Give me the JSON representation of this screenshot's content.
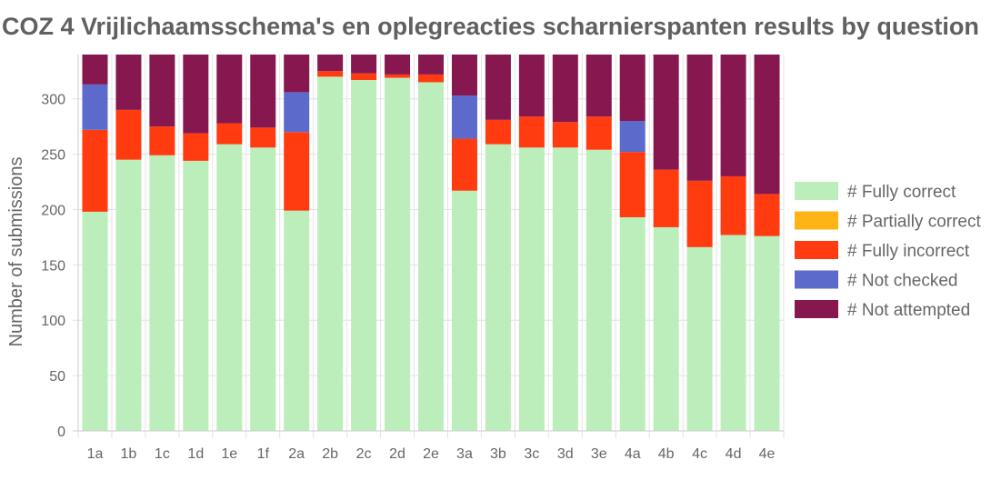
{
  "chart_data": {
    "type": "bar",
    "stacked": true,
    "title": "COZ 4 Vrijlichaamsschema's en oplegreacties scharnierspanten results by question",
    "ylabel": "Number of submissions",
    "xlabel": "",
    "ylim": [
      0,
      340
    ],
    "yticks": [
      0,
      50,
      100,
      150,
      200,
      250,
      300
    ],
    "grid": true,
    "legend_position": "right",
    "categories": [
      "1a",
      "1b",
      "1c",
      "1d",
      "1e",
      "1f",
      "2a",
      "2b",
      "2c",
      "2d",
      "2e",
      "3a",
      "3b",
      "3c",
      "3d",
      "3e",
      "4a",
      "4b",
      "4c",
      "4d",
      "4e"
    ],
    "series": [
      {
        "name": "# Fully correct",
        "color": "#bbeebb",
        "values": [
          198,
          245,
          249,
          244,
          259,
          256,
          199,
          320,
          317,
          319,
          315,
          217,
          259,
          256,
          256,
          254,
          193,
          184,
          166,
          177,
          176
        ]
      },
      {
        "name": "# Partially correct",
        "color": "#ffb416",
        "values": [
          0,
          0,
          0,
          0,
          0,
          0,
          0,
          0,
          0,
          0,
          0,
          0,
          0,
          0,
          0,
          0,
          0,
          0,
          0,
          0,
          0
        ]
      },
      {
        "name": "# Fully incorrect",
        "color": "#ff3b0f",
        "values": [
          74,
          45,
          26,
          25,
          19,
          18,
          71,
          5,
          6,
          3,
          7,
          47,
          22,
          28,
          23,
          30,
          59,
          52,
          60,
          53,
          38
        ]
      },
      {
        "name": "# Not checked",
        "color": "#5c6acc",
        "values": [
          41,
          0,
          0,
          0,
          0,
          0,
          36,
          0,
          0,
          0,
          0,
          39,
          0,
          0,
          0,
          0,
          28,
          0,
          0,
          0,
          0
        ]
      },
      {
        "name": "# Not attempted",
        "color": "#86174f",
        "values": [
          27,
          50,
          65,
          71,
          62,
          66,
          34,
          15,
          17,
          18,
          18,
          37,
          59,
          56,
          61,
          56,
          60,
          104,
          114,
          110,
          126
        ]
      }
    ]
  }
}
